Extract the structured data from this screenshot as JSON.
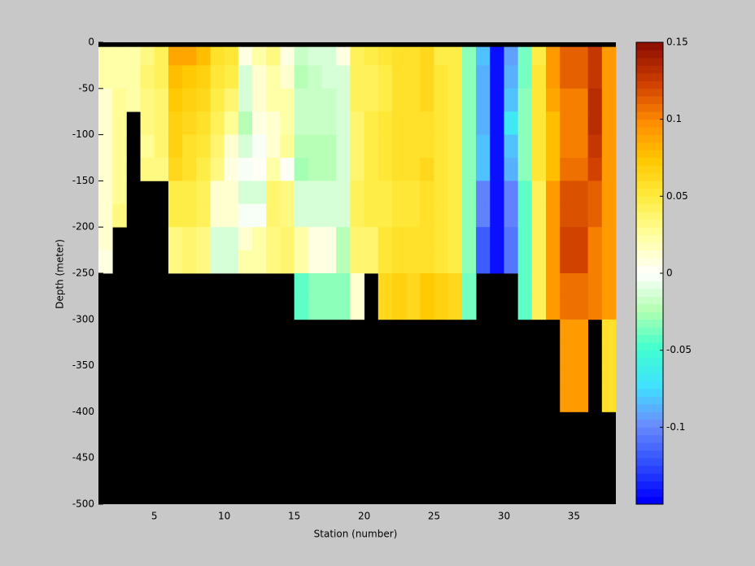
{
  "chart_data": {
    "type": "heatmap",
    "xlabel": "Station (number)",
    "ylabel": "Depth (meter)",
    "xlim": [
      1,
      38
    ],
    "xticks": [
      5,
      10,
      15,
      20,
      25,
      30,
      35
    ],
    "ylim": [
      -500,
      0
    ],
    "yticks": [
      0,
      -50,
      -100,
      -150,
      -200,
      -250,
      -300,
      -350,
      -400,
      -450,
      -500
    ],
    "background": "#000000",
    "clim": [
      -0.15,
      0.15
    ],
    "colorbar_ticks": [
      0.15,
      0.1,
      0.05,
      0,
      -0.05,
      -0.1
    ],
    "colormap": [
      "#0000ff",
      "#3050ff",
      "#6a8cff",
      "#40e0ff",
      "#40ffd0",
      "#b0ffb0",
      "#ffffff",
      "#ffffa0",
      "#ffec40",
      "#ffc800",
      "#ff8c00",
      "#d04000",
      "#901000"
    ],
    "x_edges": [
      1,
      2,
      3,
      4,
      5,
      6,
      7,
      8,
      9,
      10,
      11,
      12,
      13,
      14,
      15,
      16,
      17,
      18,
      19,
      20,
      21,
      22,
      23,
      24,
      25,
      26,
      27,
      28,
      29,
      30,
      31,
      32,
      33,
      34,
      35,
      36,
      37,
      38
    ],
    "y_edges": [
      -5,
      -25,
      -50,
      -75,
      -100,
      -125,
      -150,
      -175,
      -200,
      -225,
      -250,
      -275,
      -300,
      -325,
      -350,
      -375,
      -400
    ],
    "values": [
      [
        0.02,
        0.02,
        0.01,
        0.01,
        0.01,
        0.01,
        0.015,
        0.015,
        0.01,
        0.005,
        null,
        null,
        null,
        null,
        null,
        null
      ],
      [
        0.02,
        0.02,
        0.025,
        0.025,
        0.025,
        0.025,
        0.025,
        0.03,
        null,
        null,
        null,
        null,
        null,
        null,
        null,
        null
      ],
      [
        0.02,
        0.02,
        0.02,
        null,
        null,
        null,
        null,
        null,
        null,
        null,
        null,
        null,
        null,
        null,
        null,
        null
      ],
      [
        0.03,
        0.035,
        0.03,
        0.03,
        0.025,
        0.03,
        null,
        null,
        null,
        null,
        null,
        null,
        null,
        null,
        null,
        null
      ],
      [
        0.04,
        0.04,
        0.035,
        0.035,
        0.035,
        0.03,
        null,
        null,
        null,
        null,
        null,
        null,
        null,
        null,
        null,
        null
      ],
      [
        0.085,
        0.075,
        0.07,
        0.065,
        0.065,
        0.06,
        0.045,
        0.045,
        0.03,
        0.03,
        null,
        null,
        null,
        null,
        null,
        null
      ],
      [
        0.085,
        0.07,
        0.065,
        0.06,
        0.055,
        0.055,
        0.045,
        0.045,
        0.035,
        0.035,
        null,
        null,
        null,
        null,
        null,
        null
      ],
      [
        0.075,
        0.065,
        0.06,
        0.055,
        0.05,
        0.045,
        0.04,
        0.04,
        0.03,
        0.03,
        null,
        null,
        null,
        null,
        null,
        null
      ],
      [
        0.055,
        0.05,
        0.045,
        0.04,
        0.035,
        0.03,
        0.01,
        0.01,
        -0.01,
        -0.01,
        null,
        null,
        null,
        null,
        null,
        null
      ],
      [
        0.05,
        0.045,
        0.035,
        0.025,
        0.01,
        0.005,
        0.01,
        0.01,
        -0.01,
        -0.01,
        null,
        null,
        null,
        null,
        null,
        null
      ],
      [
        0.005,
        -0.01,
        -0.015,
        -0.025,
        -0.01,
        -0.005,
        -0.01,
        -0.005,
        0.01,
        0.02,
        null,
        null,
        null,
        null,
        null,
        null
      ],
      [
        0.02,
        0.01,
        0.01,
        0.005,
        -0.005,
        0,
        -0.01,
        -0.005,
        0.02,
        0.02,
        null,
        null,
        null,
        null,
        null,
        null
      ],
      [
        0.03,
        0.02,
        0.02,
        0.015,
        0.01,
        0.02,
        0.035,
        0.035,
        0.03,
        0.03,
        null,
        null,
        null,
        null,
        null,
        null
      ],
      [
        0.005,
        0.015,
        0.02,
        0.02,
        0.025,
        0,
        0.03,
        0.03,
        0.035,
        0.035,
        null,
        null,
        null,
        null,
        null,
        null
      ],
      [
        -0.02,
        -0.025,
        -0.02,
        -0.02,
        -0.025,
        -0.03,
        -0.015,
        -0.015,
        0.02,
        0.02,
        -0.045,
        -0.045,
        null,
        null,
        null,
        null
      ],
      [
        -0.015,
        -0.02,
        -0.02,
        -0.02,
        -0.025,
        -0.025,
        -0.015,
        -0.015,
        0.005,
        0.005,
        -0.035,
        -0.035,
        null,
        null,
        null,
        null
      ],
      [
        -0.01,
        -0.015,
        -0.02,
        -0.02,
        -0.025,
        -0.025,
        -0.015,
        -0.015,
        0.005,
        0.005,
        -0.035,
        -0.035,
        null,
        null,
        null,
        null
      ],
      [
        0.005,
        -0.01,
        -0.01,
        -0.01,
        -0.015,
        -0.015,
        -0.01,
        -0.01,
        -0.025,
        -0.025,
        -0.035,
        -0.035,
        null,
        null,
        null,
        null
      ],
      [
        0.04,
        0.04,
        0.04,
        0.035,
        0.035,
        0.035,
        0.04,
        0.04,
        0.035,
        0.035,
        0.015,
        0.015,
        null,
        null,
        null,
        null
      ],
      [
        0.045,
        0.04,
        0.04,
        0.045,
        0.045,
        0.045,
        0.045,
        0.045,
        0.035,
        0.035,
        null,
        null,
        null,
        null,
        null,
        null
      ],
      [
        0.05,
        0.045,
        0.045,
        0.05,
        0.05,
        0.05,
        0.045,
        0.045,
        0.05,
        0.05,
        0.06,
        0.06,
        null,
        null,
        null,
        null
      ],
      [
        0.055,
        0.055,
        0.055,
        0.055,
        0.055,
        0.055,
        0.05,
        0.05,
        0.055,
        0.055,
        0.065,
        0.065,
        null,
        null,
        null,
        null
      ],
      [
        0.055,
        0.055,
        0.055,
        0.055,
        0.055,
        0.055,
        0.05,
        0.05,
        0.055,
        0.055,
        0.06,
        0.06,
        null,
        null,
        null,
        null
      ],
      [
        0.06,
        0.06,
        0.06,
        0.055,
        0.055,
        0.06,
        0.055,
        0.055,
        0.055,
        0.055,
        0.07,
        0.07,
        null,
        null,
        null,
        null
      ],
      [
        0.045,
        0.05,
        0.05,
        0.05,
        0.05,
        0.05,
        0.05,
        0.05,
        0.05,
        0.05,
        0.065,
        0.065,
        null,
        null,
        null,
        null
      ],
      [
        0.045,
        0.045,
        0.045,
        0.045,
        0.045,
        0.045,
        0.045,
        0.045,
        0.045,
        0.045,
        0.06,
        0.06,
        null,
        null,
        null,
        null
      ],
      [
        -0.035,
        -0.035,
        -0.035,
        -0.035,
        -0.035,
        -0.035,
        -0.035,
        -0.035,
        -0.035,
        -0.035,
        -0.04,
        -0.04,
        null,
        null,
        null,
        null
      ],
      [
        -0.08,
        -0.085,
        -0.085,
        -0.085,
        -0.08,
        -0.08,
        -0.1,
        -0.1,
        -0.115,
        -0.115,
        null,
        null,
        null,
        null,
        null,
        null
      ],
      [
        -0.14,
        -0.14,
        -0.14,
        -0.14,
        -0.14,
        -0.14,
        -0.14,
        -0.14,
        -0.14,
        -0.14,
        null,
        null,
        null,
        null,
        null,
        null
      ],
      [
        -0.095,
        -0.085,
        -0.08,
        -0.07,
        -0.08,
        -0.09,
        -0.1,
        -0.1,
        -0.11,
        -0.11,
        null,
        null,
        null,
        null,
        null,
        null
      ],
      [
        -0.04,
        -0.04,
        -0.035,
        -0.035,
        -0.035,
        -0.035,
        -0.045,
        -0.045,
        -0.045,
        -0.045,
        -0.045,
        -0.045,
        null,
        null,
        null,
        null
      ],
      [
        0.045,
        0.05,
        0.05,
        0.05,
        0.05,
        0.05,
        0.04,
        0.04,
        0.04,
        0.04,
        0.04,
        0.04,
        null,
        null,
        null,
        null
      ],
      [
        0.09,
        0.09,
        0.085,
        0.075,
        0.075,
        0.075,
        0.09,
        0.09,
        0.09,
        0.09,
        0.09,
        0.09,
        null,
        null,
        null,
        null
      ],
      [
        0.11,
        0.11,
        0.1,
        0.1,
        0.1,
        0.105,
        0.115,
        0.115,
        0.12,
        0.12,
        0.105,
        0.105,
        0.09,
        0.09,
        0.09,
        0.09
      ],
      [
        0.11,
        0.11,
        0.1,
        0.1,
        0.1,
        0.105,
        0.115,
        0.115,
        0.12,
        0.12,
        0.105,
        0.105,
        0.09,
        0.09,
        0.09,
        0.09
      ],
      [
        0.125,
        0.125,
        0.13,
        0.13,
        0.125,
        0.12,
        0.11,
        0.11,
        0.1,
        0.1,
        0.1,
        0.1,
        null,
        null,
        null,
        null
      ],
      [
        0.09,
        0.09,
        0.09,
        0.09,
        0.09,
        0.09,
        0.09,
        0.09,
        0.09,
        0.09,
        0.09,
        0.09,
        0.055,
        0.055,
        0.055,
        0.055
      ]
    ]
  }
}
